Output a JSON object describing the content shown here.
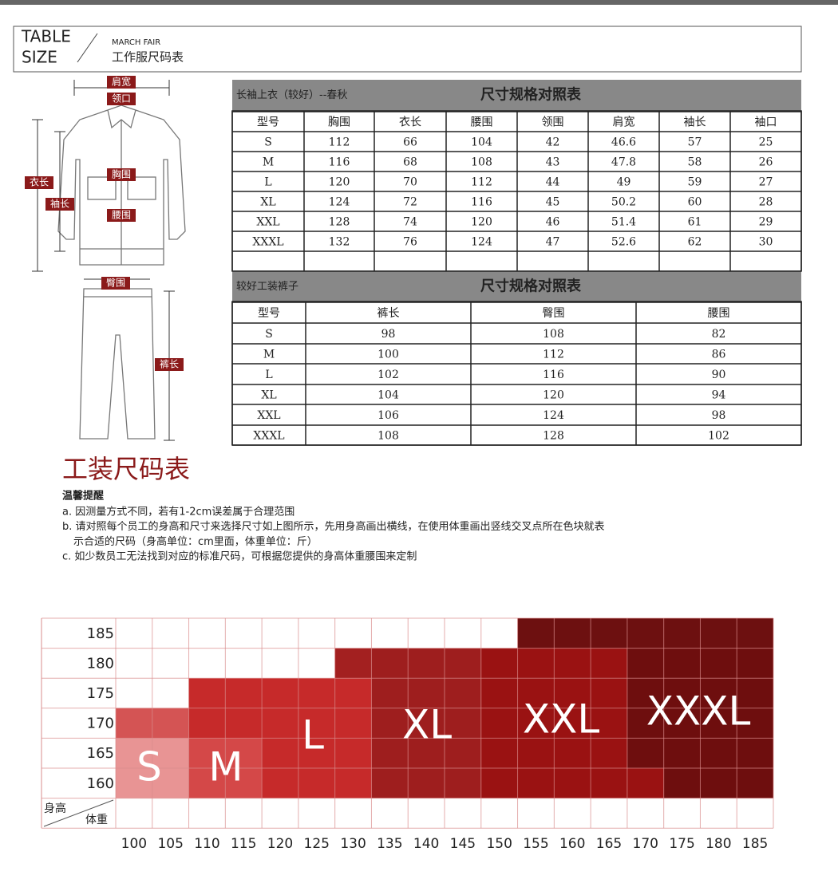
{
  "header": {
    "title_line1": "TABLE",
    "title_line2": "SIZE",
    "subtitle_en": "MARCH FAIR",
    "subtitle_cn": "工作服尺码表"
  },
  "diagram": {
    "labels": [
      "肩宽",
      "领口",
      "衣长",
      "胸围",
      "袖长",
      "腰围",
      "臀围",
      "裤长"
    ]
  },
  "jacket_table": {
    "name": "长袖上衣（较好）--春秋",
    "title": "尺寸规格对照表",
    "columns": [
      "型号",
      "胸围",
      "衣长",
      "腰围",
      "领围",
      "肩宽",
      "袖长",
      "袖口"
    ],
    "rows": [
      [
        "S",
        112,
        66,
        104,
        42,
        46.6,
        57,
        25
      ],
      [
        "M",
        116,
        68,
        108,
        43,
        47.8,
        58,
        26
      ],
      [
        "L",
        120,
        70,
        112,
        44,
        49,
        59,
        27
      ],
      [
        "XL",
        124,
        72,
        116,
        45,
        50.2,
        60,
        28
      ],
      [
        "XXL",
        128,
        74,
        120,
        46,
        51.4,
        61,
        29
      ],
      [
        "XXXL",
        132,
        76,
        124,
        47,
        52.6,
        62,
        30
      ]
    ]
  },
  "pants_table": {
    "name": "较好工装裤子",
    "title": "尺寸规格对照表",
    "columns": [
      "型号",
      "裤长",
      "臀围",
      "腰围"
    ],
    "rows": [
      [
        "S",
        98,
        108,
        82
      ],
      [
        "M",
        100,
        112,
        86
      ],
      [
        "L",
        102,
        116,
        90
      ],
      [
        "XL",
        104,
        120,
        94
      ],
      [
        "XXL",
        106,
        124,
        98
      ],
      [
        "XXXL",
        108,
        128,
        102
      ]
    ]
  },
  "size_chart": {
    "title": "工装尺码表",
    "tip_title": "温馨提醒",
    "notes": [
      "a. 因测量方式不同，若有1-2cm误差属于合理范围",
      "b. 请对照每个员工的身高和尺寸来选择尺寸如上图所示，先用身高画出横线，在使用体重画出竖线交叉点所在色块就表",
      "示合适的尺码（身高单位：cm里面，体重单位：斤）",
      "c. 如少数员工无法找到对应的标准尺码，可根据您提供的身高体重腰围来定制"
    ],
    "height_label": "身高",
    "weight_label": "体重",
    "heights": [
      185,
      180,
      175,
      170,
      165,
      160
    ],
    "weights": [
      100,
      105,
      110,
      115,
      120,
      125,
      130,
      135,
      140,
      145,
      150,
      155,
      160,
      165,
      170,
      175,
      180,
      185
    ],
    "size_labels": [
      "S",
      "M",
      "L",
      "XL",
      "XXL",
      "XXXL"
    ]
  }
}
